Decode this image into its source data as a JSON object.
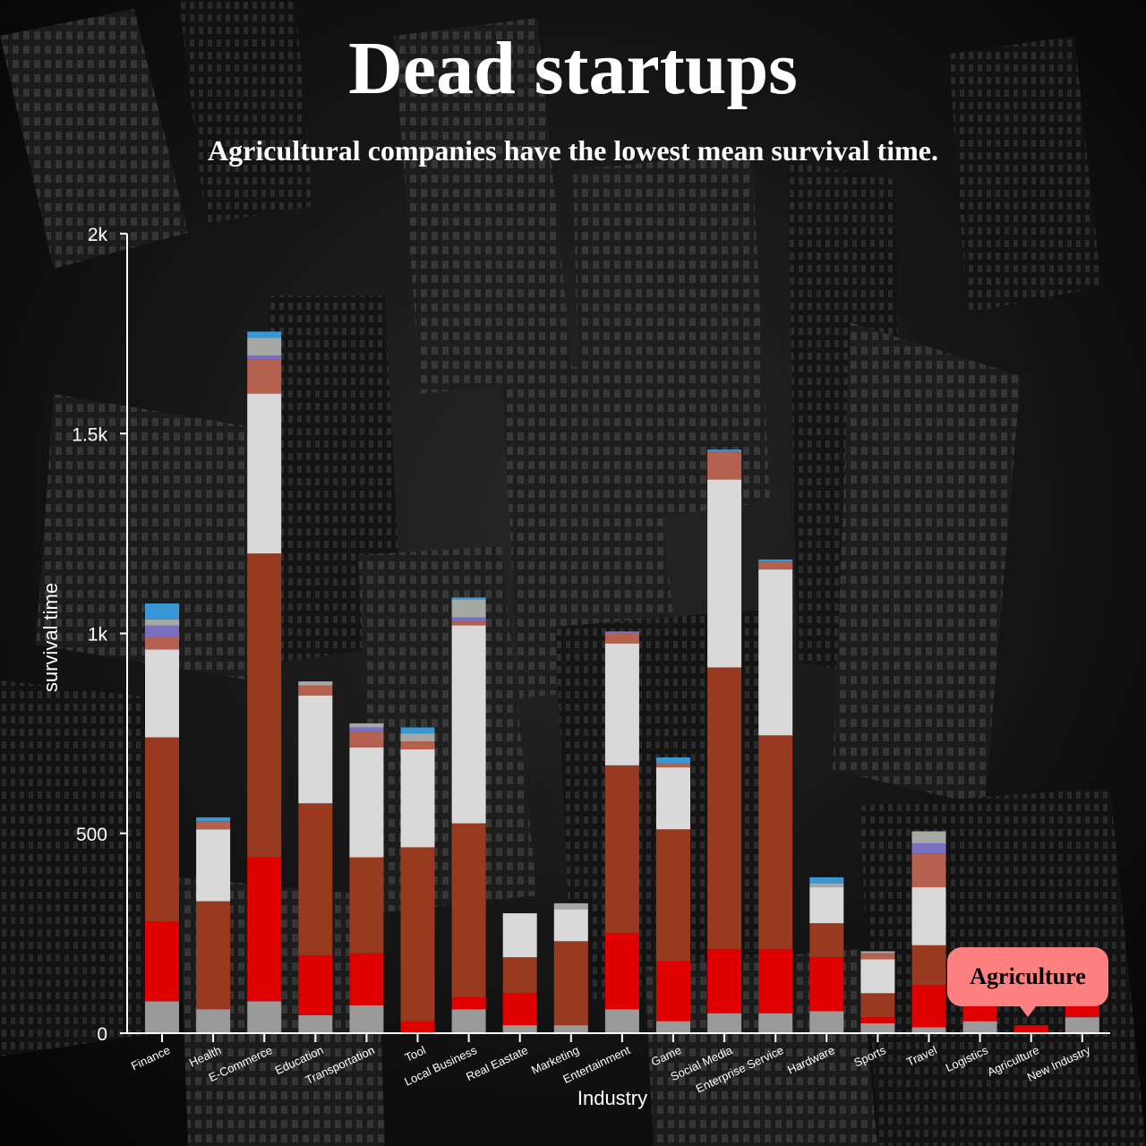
{
  "title": "Dead startups",
  "subtitle": "Agricultural companies have the lowest mean survival time.",
  "tooltip": {
    "label": "Agriculture"
  },
  "chart_data": {
    "type": "bar",
    "stacked": true,
    "xlabel": "Industry",
    "ylabel": "survival time",
    "ylim": [
      0,
      2000
    ],
    "yticks": [
      {
        "value": 0,
        "label": "0"
      },
      {
        "value": 500,
        "label": "500"
      },
      {
        "value": 1000,
        "label": "1k"
      },
      {
        "value": 1500,
        "label": "1.5k"
      },
      {
        "value": 2000,
        "label": "2k"
      }
    ],
    "grid": false,
    "highlighted_category": "Agriculture",
    "categories": [
      "Finance",
      "Health",
      "E-Commerce",
      "Education",
      "Transportation",
      "Tool",
      "Local Business",
      "Real Eastate",
      "Marketing",
      "Entertainment",
      "Game",
      "Social Media",
      "Enterprise Service",
      "Hardware",
      "Sports",
      "Travel",
      "Logistics",
      "Agriculture",
      "New Industry"
    ],
    "series": [
      {
        "color": "#9a9a9a",
        "values": [
          80,
          60,
          80,
          45,
          70,
          0,
          60,
          20,
          20,
          60,
          30,
          50,
          50,
          55,
          25,
          15,
          30,
          0,
          40
        ]
      },
      {
        "color": "#e00000",
        "values": [
          200,
          0,
          360,
          150,
          130,
          30,
          30,
          80,
          0,
          190,
          150,
          160,
          160,
          135,
          15,
          105,
          40,
          20,
          40
        ]
      },
      {
        "color": "#973a1f",
        "values": [
          460,
          270,
          760,
          380,
          240,
          435,
          435,
          90,
          210,
          420,
          330,
          705,
          535,
          85,
          60,
          100,
          0,
          0,
          0
        ]
      },
      {
        "color": "#d9d9d9",
        "values": [
          220,
          180,
          400,
          270,
          275,
          245,
          495,
          110,
          80,
          305,
          155,
          470,
          415,
          90,
          85,
          145,
          0,
          0,
          0
        ]
      },
      {
        "color": "#b5614f",
        "values": [
          30,
          20,
          85,
          25,
          40,
          20,
          10,
          0,
          0,
          25,
          10,
          70,
          20,
          0,
          15,
          85,
          0,
          0,
          0
        ]
      },
      {
        "color": "#7b6fc2",
        "values": [
          30,
          0,
          10,
          0,
          10,
          0,
          10,
          0,
          0,
          5,
          0,
          0,
          0,
          0,
          0,
          25,
          0,
          0,
          0
        ]
      },
      {
        "color": "#a5a8a5",
        "values": [
          15,
          0,
          45,
          10,
          10,
          20,
          45,
          0,
          15,
          0,
          0,
          0,
          0,
          10,
          5,
          30,
          0,
          0,
          0
        ]
      },
      {
        "color": "#3a97d6",
        "values": [
          40,
          10,
          15,
          0,
          0,
          15,
          5,
          0,
          0,
          0,
          15,
          5,
          5,
          15,
          0,
          0,
          0,
          0,
          0
        ]
      }
    ]
  }
}
